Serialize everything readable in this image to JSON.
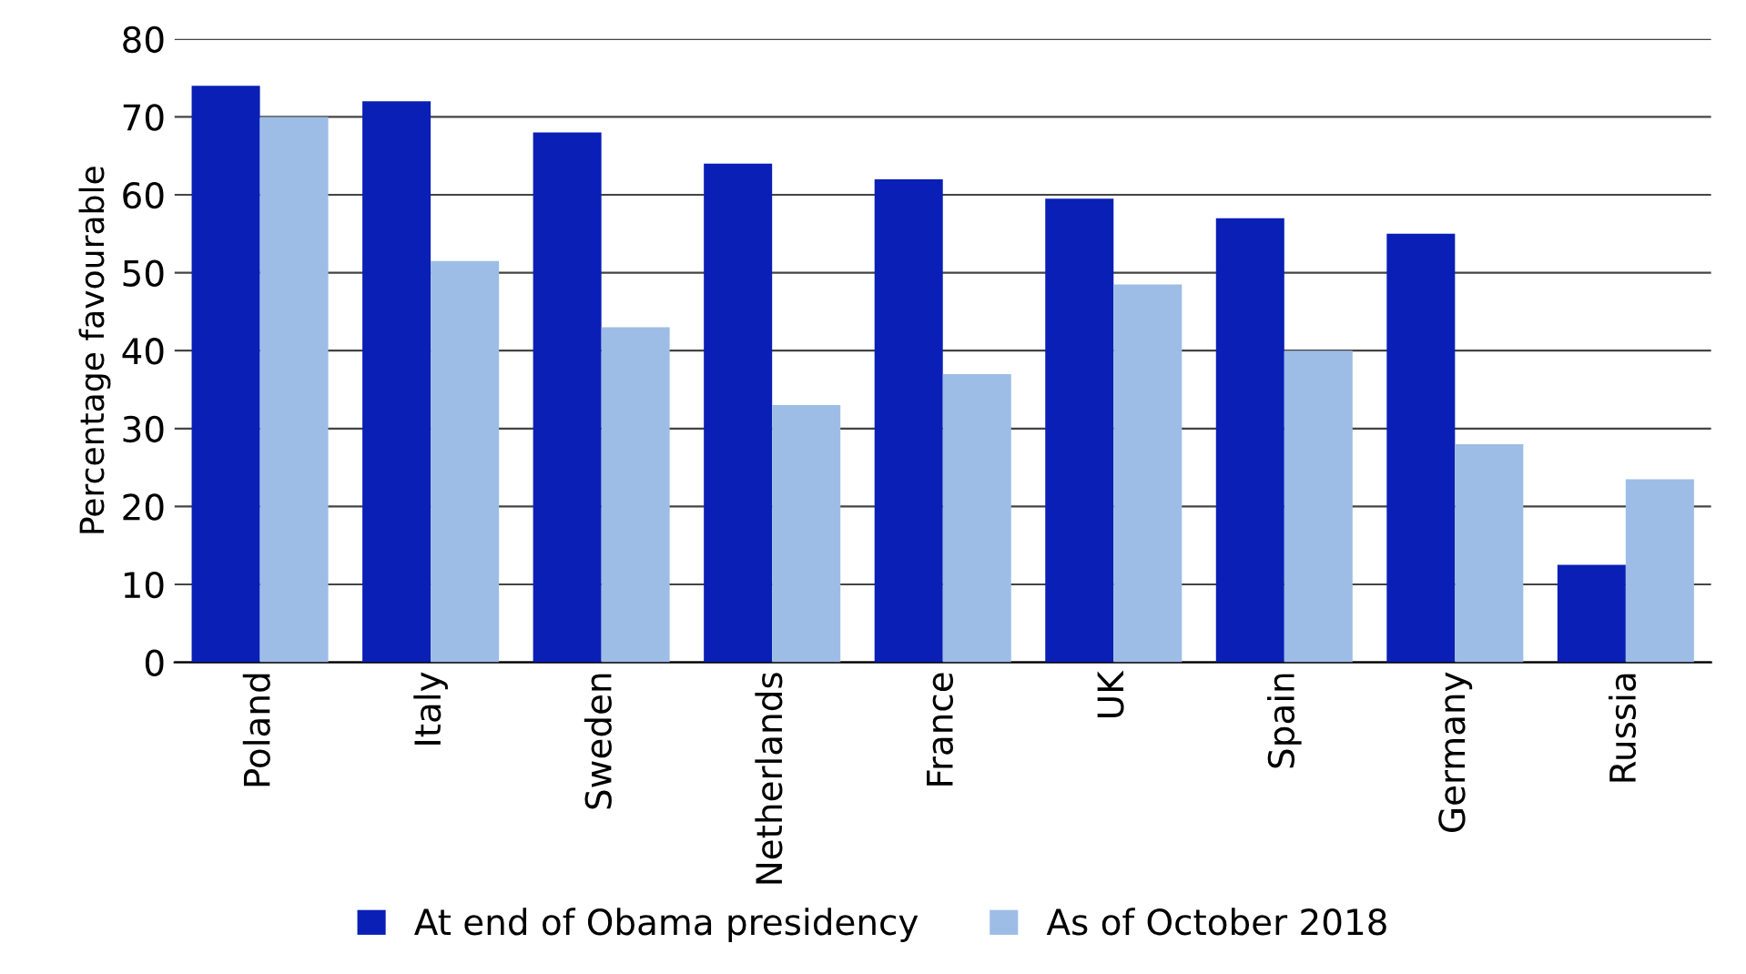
{
  "chart_data": {
    "type": "bar",
    "ylabel": "Percentage favourable",
    "categories": [
      "Poland",
      "Italy",
      "Sweden",
      "Netherlands",
      "France",
      "UK",
      "Spain",
      "Germany",
      "Russia"
    ],
    "series": [
      {
        "name": "At end of Obama presidency",
        "color": "#0a1fb5",
        "values": [
          74,
          72,
          68,
          64,
          62,
          59.5,
          57,
          55,
          12.5
        ]
      },
      {
        "name": "As of October 2018",
        "color": "#9dbde6",
        "values": [
          70,
          51.5,
          43,
          33,
          37,
          48.5,
          40,
          28,
          23.5
        ]
      }
    ],
    "ylim": [
      0,
      80
    ],
    "yticks": [
      0,
      10,
      20,
      30,
      40,
      50,
      60,
      70,
      80
    ],
    "grid": "y",
    "legend": "bottom"
  }
}
